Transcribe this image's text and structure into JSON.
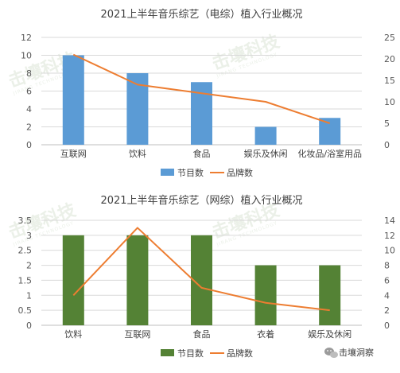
{
  "chart_data": [
    {
      "type": "bar+line",
      "title": "2021上半年音乐综艺（电综）植入行业概况",
      "categories": [
        "互联网",
        "饮料",
        "食品",
        "娱乐及休闲",
        "化妆品/浴室用品"
      ],
      "series": [
        {
          "name": "节目数",
          "type": "bar",
          "axis": "left",
          "color": "#5b9bd5",
          "values": [
            10,
            8,
            7,
            2,
            3
          ]
        },
        {
          "name": "品牌数",
          "type": "line",
          "axis": "right",
          "color": "#ed7d31",
          "values": [
            21,
            14,
            12,
            10,
            5
          ]
        }
      ],
      "y_left": {
        "min": 0,
        "max": 12,
        "step": 2,
        "ticks": [
          "0",
          "2",
          "4",
          "6",
          "8",
          "10",
          "12"
        ]
      },
      "y_right": {
        "min": 0,
        "max": 25,
        "step": 5,
        "ticks": [
          "0",
          "5",
          "10",
          "15",
          "20",
          "25"
        ]
      },
      "grid": true,
      "legend": "bottom"
    },
    {
      "type": "bar+line",
      "title": "2021上半年音乐综艺（网综）植入行业概况",
      "categories": [
        "饮料",
        "互联网",
        "食品",
        "衣着",
        "娱乐及休闲"
      ],
      "series": [
        {
          "name": "节目数",
          "type": "bar",
          "axis": "left",
          "color": "#548235",
          "values": [
            3,
            3,
            3,
            2,
            2
          ]
        },
        {
          "name": "品牌数",
          "type": "line",
          "axis": "right",
          "color": "#ed7d31",
          "values": [
            4,
            13,
            5,
            3,
            2
          ]
        }
      ],
      "y_left": {
        "min": 0,
        "max": 3.5,
        "step": 0.5,
        "ticks": [
          "0",
          "0.5",
          "1",
          "1.5",
          "2",
          "2.5",
          "3",
          "3.5"
        ]
      },
      "y_right": {
        "min": 0,
        "max": 14,
        "step": 2,
        "ticks": [
          "0",
          "2",
          "4",
          "6",
          "8",
          "10",
          "12",
          "14"
        ]
      },
      "grid": true,
      "legend": "bottom"
    }
  ],
  "watermark": {
    "text": "击壤科技",
    "subtext": "JIRANG TECHNOLOGY"
  },
  "footer": {
    "brand_label": "击壤洞察",
    "icon": "wechat-icon"
  }
}
